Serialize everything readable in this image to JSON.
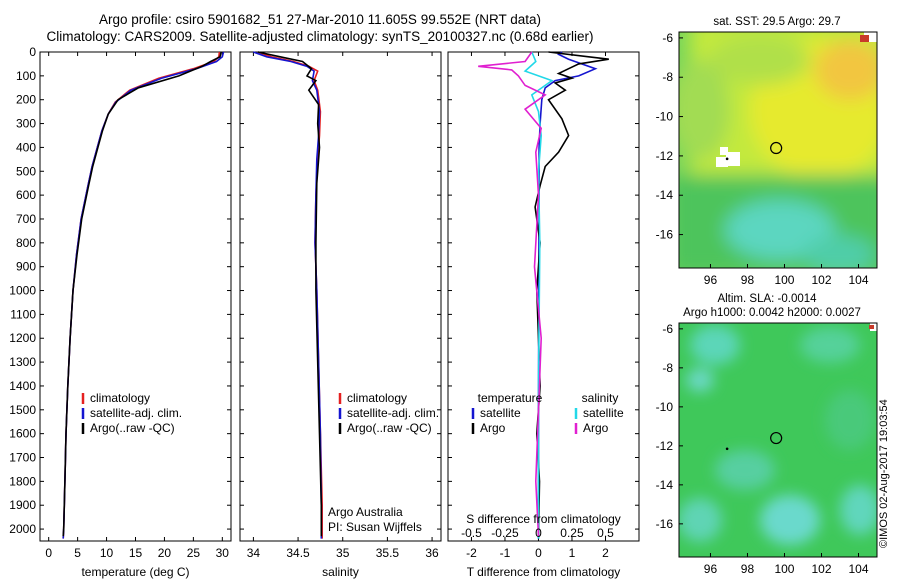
{
  "header": {
    "line1": "Argo profile: csiro 5901682_51 27-Mar-2010 11.605S 99.552E (NRT data)",
    "line2": "Climatology: CARS2009. Satellite-adjusted climatology: synTS_20100327.nc (0.68d earlier)"
  },
  "colors": {
    "climatology": "#e52020",
    "satellite": "#1515d0",
    "argo": "#000000",
    "sat_salinity": "#22d8e8",
    "argo_salinity": "#e020d0"
  },
  "chart_data": [
    {
      "type": "line",
      "name": "temperature-profile",
      "xlabel": "temperature (deg C)",
      "ylabel": "",
      "xlim": [
        -1.5,
        31.5
      ],
      "ylim": [
        2050,
        0
      ],
      "xticks": [
        0,
        5,
        10,
        15,
        20,
        25,
        30
      ],
      "yticks": [
        0,
        100,
        200,
        300,
        400,
        500,
        600,
        700,
        800,
        900,
        1000,
        1100,
        1200,
        1300,
        1400,
        1500,
        1600,
        1700,
        1800,
        1900,
        2000
      ],
      "legend": [
        "climatology",
        "satellite-adj. clim.",
        "Argo(..raw -QC)"
      ],
      "series": [
        {
          "name": "climatology",
          "color": "#e52020",
          "x": [
            29.5,
            29.4,
            28.5,
            25,
            19,
            14,
            11.5,
            10.3,
            9.2,
            8.4,
            7.5,
            6.8,
            5.6,
            4.8,
            4.2,
            3.7,
            3.3,
            3.0,
            2.8,
            2.6,
            2.5
          ],
          "y": [
            0,
            20,
            40,
            70,
            110,
            160,
            210,
            260,
            330,
            400,
            480,
            560,
            700,
            850,
            1000,
            1200,
            1400,
            1600,
            1800,
            2000,
            2040
          ]
        },
        {
          "name": "satellite-adj. clim.",
          "color": "#1515d0",
          "x": [
            30.2,
            30.0,
            29.0,
            25.5,
            19.5,
            14.2,
            11.6,
            10.3,
            9.2,
            8.4,
            7.5,
            6.8,
            5.6,
            4.8,
            4.2,
            3.7,
            3.3,
            3.0,
            2.8,
            2.6,
            2.5
          ],
          "y": [
            0,
            20,
            40,
            70,
            110,
            160,
            210,
            260,
            330,
            400,
            480,
            560,
            700,
            850,
            1000,
            1200,
            1400,
            1600,
            1800,
            2000,
            2040
          ]
        },
        {
          "name": "Argo(..raw -QC)",
          "color": "#000000",
          "x": [
            29.8,
            29.6,
            28.0,
            26.5,
            22.5,
            15.5,
            12.0,
            10.3,
            9.3,
            8.5,
            7.6,
            6.9,
            5.7,
            4.9,
            4.2,
            3.7,
            3.3,
            3.0,
            2.8,
            2.6,
            2.5
          ],
          "y": [
            0,
            20,
            40,
            60,
            100,
            150,
            200,
            260,
            330,
            400,
            480,
            560,
            700,
            850,
            1000,
            1200,
            1400,
            1600,
            1800,
            2000,
            2030
          ]
        }
      ]
    },
    {
      "type": "line",
      "name": "salinity-profile",
      "xlabel": "salinity",
      "xlim": [
        33.85,
        36.1
      ],
      "ylim": [
        2050,
        0
      ],
      "xticks": [
        34,
        34.5,
        35,
        35.5,
        36
      ],
      "legend": [
        "climatology",
        "satellite-adj. clim.",
        "Argo(..raw -QC)"
      ],
      "annotation": [
        "Argo Australia",
        "PI: Susan Wijffels"
      ],
      "series": [
        {
          "name": "climatology",
          "color": "#e52020",
          "x": [
            34.05,
            34.2,
            34.45,
            34.62,
            34.72,
            34.68,
            34.72,
            34.75,
            34.74,
            34.72,
            34.7,
            34.69,
            34.71,
            34.73,
            34.75,
            34.77,
            34.77
          ],
          "y": [
            0,
            20,
            40,
            60,
            80,
            120,
            160,
            250,
            350,
            450,
            600,
            800,
            1000,
            1300,
            1600,
            1900,
            2040
          ]
        },
        {
          "name": "satellite-adj. clim.",
          "color": "#1515d0",
          "x": [
            34.0,
            34.15,
            34.42,
            34.6,
            34.68,
            34.66,
            34.71,
            34.74,
            34.73,
            34.71,
            34.7,
            34.69,
            34.71,
            34.73,
            34.75,
            34.76,
            34.76
          ],
          "y": [
            0,
            20,
            40,
            60,
            80,
            120,
            160,
            250,
            350,
            450,
            600,
            800,
            1000,
            1300,
            1600,
            1900,
            2040
          ]
        },
        {
          "name": "Argo(..raw -QC)",
          "color": "#000000",
          "x": [
            34.05,
            34.3,
            34.55,
            34.65,
            34.6,
            34.7,
            34.62,
            34.73,
            34.72,
            34.74,
            34.71,
            34.7,
            34.7,
            34.72,
            34.74,
            34.76,
            34.76
          ],
          "y": [
            0,
            20,
            40,
            70,
            100,
            120,
            160,
            220,
            300,
            400,
            550,
            800,
            1000,
            1300,
            1600,
            1900,
            2030
          ]
        }
      ]
    },
    {
      "type": "line",
      "name": "difference-profile",
      "xlabel": "T difference from climatology",
      "xlabel_top": "S difference from climatology",
      "xlim": [
        -2.7,
        3.0
      ],
      "ylim": [
        2050,
        0
      ],
      "xticks": [
        -2,
        -1,
        0,
        1,
        2
      ],
      "top_tick_labels": [
        "-0.5",
        "-0.25",
        "0",
        "0.25",
        "0.5"
      ],
      "top_tick_values": [
        -0.5,
        -0.25,
        0,
        0.25,
        0.5
      ],
      "legend_temperature_title": "temperature",
      "legend_salinity_title": "salinity",
      "legend": [
        "satellite",
        "Argo",
        "satellite",
        "Argo"
      ],
      "series": [
        {
          "name": "temperature satellite",
          "color": "#1515d0",
          "x": [
            0.7,
            0.6,
            0.9,
            1.7,
            1.2,
            0.5,
            0.2,
            0.1,
            0.05,
            0.02,
            0.02,
            0.01,
            0.0,
            0.0
          ],
          "y": [
            0,
            10,
            30,
            70,
            100,
            120,
            150,
            200,
            300,
            400,
            600,
            1000,
            1500,
            2040
          ]
        },
        {
          "name": "temperature Argo",
          "color": "#000000",
          "x": [
            0.3,
            1.5,
            2.1,
            1.2,
            0.9,
            0.6,
            1.0,
            0.5,
            0.8,
            0.3,
            0.7,
            0.9,
            0.6,
            0.2,
            0.05,
            -0.1,
            0.05,
            -0.05,
            0.0,
            0.05,
            -0.05,
            0.03,
            0.0
          ],
          "y": [
            0,
            20,
            30,
            50,
            70,
            90,
            110,
            130,
            160,
            200,
            280,
            350,
            420,
            480,
            560,
            650,
            800,
            1000,
            1200,
            1400,
            1600,
            1800,
            2030
          ]
        },
        {
          "name": "salinity satellite",
          "color": "#22d8e8",
          "x": [
            -0.05,
            -0.02,
            -0.1,
            0.1,
            -0.05,
            0.0,
            0.02,
            0.0,
            0.01,
            0.0,
            0.0
          ],
          "y": [
            0,
            40,
            80,
            120,
            180,
            250,
            350,
            500,
            800,
            1400,
            2040
          ]
        },
        {
          "name": "salinity Argo",
          "color": "#e020d0",
          "x": [
            -0.05,
            -0.1,
            -0.45,
            -0.2,
            -0.15,
            -0.1,
            0.05,
            -0.1,
            0.02,
            -0.02,
            0.0,
            -0.03,
            0.02,
            0.0,
            -0.02,
            0.0
          ],
          "y": [
            0,
            40,
            60,
            75,
            100,
            140,
            180,
            240,
            320,
            420,
            600,
            900,
            1200,
            1500,
            1800,
            2030
          ]
        }
      ]
    },
    {
      "type": "heatmap",
      "name": "sst-map",
      "title": "sat. SST: 29.5  Argo: 29.7",
      "xlim": [
        94.3,
        105.0
      ],
      "ylim": [
        -17.7,
        -5.7
      ],
      "xticks": [
        96,
        98,
        100,
        102,
        104
      ],
      "yticks": [
        -6,
        -8,
        -10,
        -12,
        -14,
        -16
      ],
      "marker": {
        "lon": 99.55,
        "lat": -11.6
      }
    },
    {
      "type": "heatmap",
      "name": "sla-map",
      "title": "Altim. SLA: -0.0014",
      "subtitle": "Argo h1000: 0.0042 h2000: 0.0027",
      "xlim": [
        94.3,
        105.0
      ],
      "ylim": [
        -17.7,
        -5.7
      ],
      "xticks": [
        96,
        98,
        100,
        102,
        104
      ],
      "yticks": [
        -6,
        -8,
        -10,
        -12,
        -14,
        -16
      ],
      "marker": {
        "lon": 99.55,
        "lat": -11.6
      }
    }
  ],
  "footer": {
    "stamp": "©IMOS 02-Aug-2017 19:03:54"
  }
}
